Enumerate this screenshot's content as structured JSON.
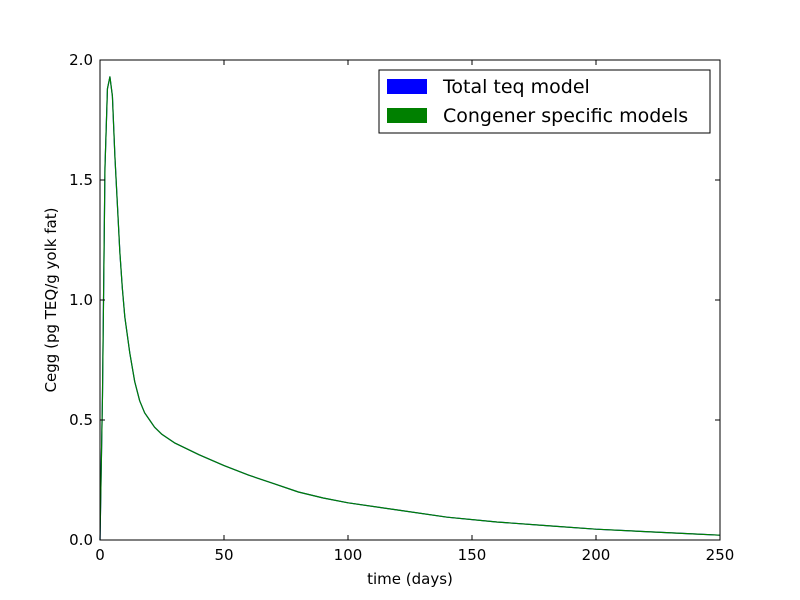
{
  "chart_data": {
    "type": "line",
    "xlabel": "time (days)",
    "ylabel": "Cegg (pg TEQ/g yolk fat)",
    "xlim": [
      0,
      250
    ],
    "ylim": [
      0,
      2.0
    ],
    "xticks": [
      "0",
      "50",
      "100",
      "150",
      "200",
      "250"
    ],
    "yticks": [
      "0.0",
      "0.5",
      "1.0",
      "1.5",
      "2.0"
    ],
    "grid": false,
    "legend_position": "top-right",
    "legend": [
      {
        "label": "Total teq model",
        "color": "#0000ff"
      },
      {
        "label": "Congener specific models",
        "color": "#008000"
      }
    ],
    "series": [
      {
        "name": "Total teq model",
        "color": "#0000ff",
        "x": [
          0,
          1,
          2,
          3,
          4,
          5,
          6,
          7,
          8,
          9,
          10,
          12,
          14,
          16,
          18,
          20,
          22,
          25,
          30,
          35,
          40,
          50,
          60,
          70,
          80,
          90,
          100,
          120,
          140,
          160,
          180,
          200,
          220,
          240,
          250
        ],
        "y": [
          0,
          0.6,
          1.55,
          1.88,
          1.93,
          1.85,
          1.6,
          1.4,
          1.2,
          1.05,
          0.93,
          0.78,
          0.66,
          0.58,
          0.53,
          0.5,
          0.47,
          0.44,
          0.405,
          0.38,
          0.355,
          0.31,
          0.27,
          0.235,
          0.2,
          0.175,
          0.155,
          0.125,
          0.095,
          0.075,
          0.06,
          0.045,
          0.035,
          0.025,
          0.02
        ]
      },
      {
        "name": "Congener specific models",
        "color": "#008000",
        "x": [
          0,
          1,
          2,
          3,
          4,
          5,
          6,
          7,
          8,
          9,
          10,
          12,
          14,
          16,
          18,
          20,
          22,
          25,
          30,
          35,
          40,
          50,
          60,
          70,
          80,
          90,
          100,
          120,
          140,
          160,
          180,
          200,
          220,
          240,
          250
        ],
        "y": [
          0,
          0.6,
          1.55,
          1.88,
          1.93,
          1.85,
          1.6,
          1.4,
          1.2,
          1.05,
          0.93,
          0.78,
          0.66,
          0.58,
          0.53,
          0.5,
          0.47,
          0.44,
          0.405,
          0.38,
          0.355,
          0.31,
          0.27,
          0.235,
          0.2,
          0.175,
          0.155,
          0.125,
          0.095,
          0.075,
          0.06,
          0.045,
          0.035,
          0.025,
          0.02
        ]
      }
    ]
  }
}
